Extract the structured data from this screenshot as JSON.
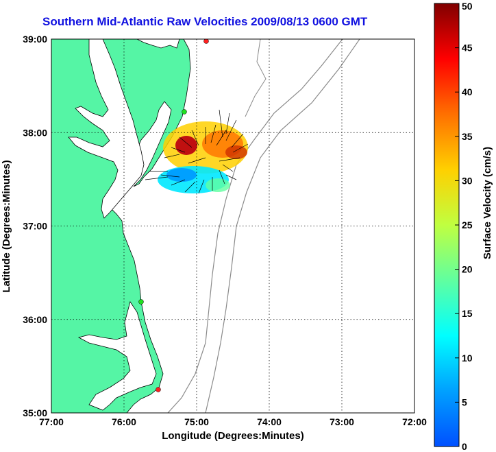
{
  "title": "Southern Mid-Atlantic Raw Velocities 2009/08/13 0600 GMT",
  "axes": {
    "xlabel": "Longitude (Degrees:Minutes)",
    "ylabel": "Latitude (Degrees:Minutes)",
    "x_ticks": [
      "77:00",
      "76:00",
      "75:00",
      "74:00",
      "73:00",
      "72:00"
    ],
    "y_ticks": [
      "39:00",
      "38:00",
      "37:00",
      "36:00",
      "35:00"
    ],
    "grid": "dotted"
  },
  "colorbar": {
    "label": "Surface Velocity (cm/s)",
    "ticks": [
      "50",
      "45",
      "40",
      "35",
      "30",
      "25",
      "20",
      "15",
      "10",
      "5",
      "0"
    ],
    "min": 0,
    "max": 50
  },
  "colors": {
    "land": "#55f5a5",
    "water": "#ffffff",
    "bathymetry": "#8a8a8a",
    "title": "#1010e0"
  }
}
